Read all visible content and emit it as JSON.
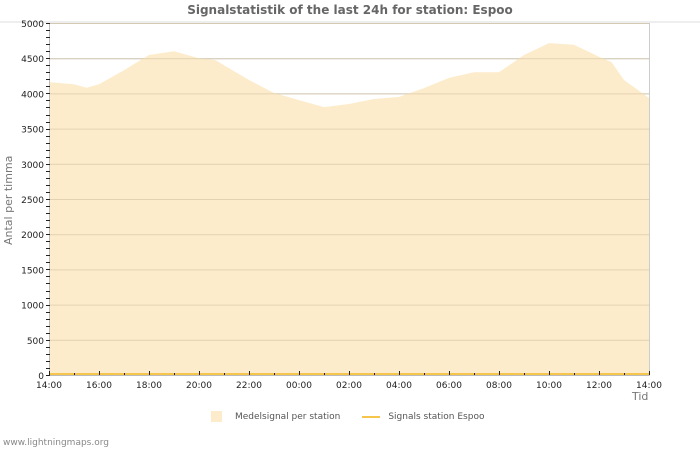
{
  "chart_data": {
    "type": "area",
    "title": "Signalstatistik of the last 24h for station: Espoo",
    "xlabel": "Tid",
    "ylabel": "Antal per timma",
    "ylim": [
      0,
      5000
    ],
    "yticks": [
      0,
      500,
      1000,
      1500,
      2000,
      2500,
      3000,
      3500,
      4000,
      4500,
      5000
    ],
    "xticks": [
      "14:00",
      "16:00",
      "18:00",
      "20:00",
      "22:00",
      "00:00",
      "02:00",
      "04:00",
      "06:00",
      "08:00",
      "10:00",
      "12:00",
      "14:00"
    ],
    "grid": true,
    "legend_position": "bottom",
    "x": [
      "14:00",
      "15:00",
      "15:30",
      "16:00",
      "17:00",
      "18:00",
      "19:00",
      "20:00",
      "20:40",
      "21:00",
      "22:00",
      "23:00",
      "00:00",
      "01:00",
      "02:00",
      "03:00",
      "04:00",
      "05:00",
      "06:00",
      "07:00",
      "08:00",
      "09:00",
      "10:00",
      "11:00",
      "12:00",
      "12:30",
      "13:00",
      "14:00"
    ],
    "x_hours": [
      0,
      1,
      1.5,
      2,
      3,
      4,
      5,
      6,
      6.67,
      7,
      8,
      9,
      10,
      11,
      12,
      13,
      14,
      15,
      16,
      17,
      18,
      19,
      20,
      21,
      22,
      22.5,
      23,
      24
    ],
    "series": [
      {
        "name": "Medelsignal per station",
        "style": "area",
        "color": "#fdeccb",
        "values": [
          4160,
          4130,
          4080,
          4130,
          4330,
          4545,
          4600,
          4500,
          4470,
          4400,
          4190,
          4005,
          3905,
          3805,
          3850,
          3920,
          3950,
          4075,
          4220,
          4300,
          4300,
          4545,
          4715,
          4690,
          4520,
          4445,
          4190,
          3935
        ]
      },
      {
        "name": "Signals station Espoo",
        "style": "line",
        "color": "#f5c54c",
        "values": [
          0,
          0,
          0,
          0,
          0,
          0,
          0,
          0,
          0,
          0,
          0,
          0,
          0,
          0,
          0,
          0,
          0,
          0,
          0,
          0,
          0,
          0,
          0,
          0,
          0,
          0,
          0,
          0
        ]
      }
    ]
  },
  "legend": {
    "item1": "Medelsignal per station",
    "item2": "Signals station Espoo"
  },
  "footer": "www.lightningmaps.org"
}
